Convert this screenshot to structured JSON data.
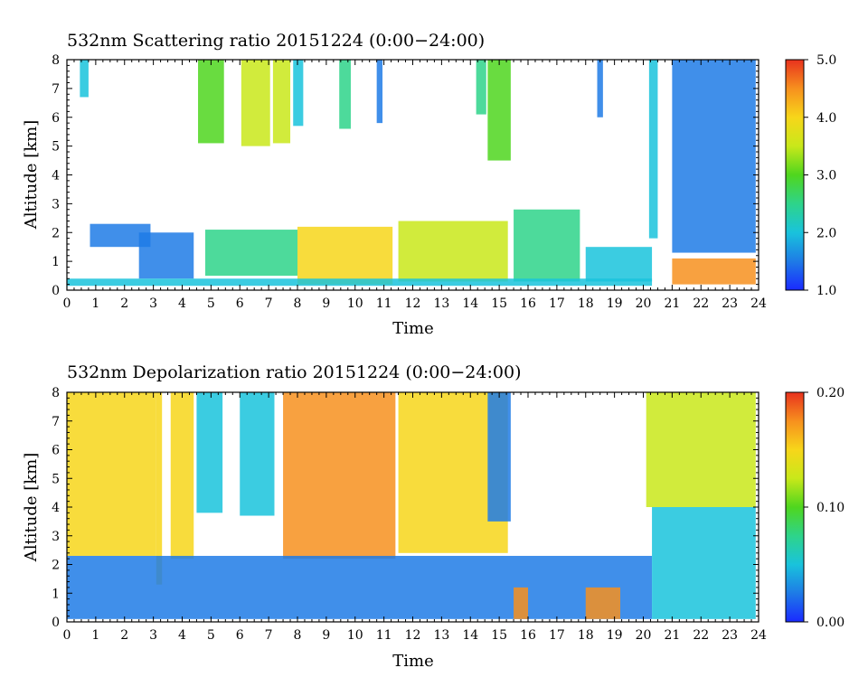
{
  "chart_data": [
    {
      "type": "heatmap",
      "title": "532nm Scattering ratio  20151224 (0:00−24:00)",
      "xlabel": "Time",
      "ylabel": "Altitude [km]",
      "xlim": [
        0,
        24
      ],
      "ylim": [
        0,
        8
      ],
      "x_ticks": [
        "0",
        "1",
        "2",
        "3",
        "4",
        "5",
        "6",
        "7",
        "8",
        "9",
        "10",
        "11",
        "12",
        "13",
        "14",
        "15",
        "16",
        "17",
        "18",
        "19",
        "20",
        "21",
        "22",
        "23",
        "24"
      ],
      "y_ticks": [
        "0",
        "1",
        "2",
        "3",
        "4",
        "5",
        "6",
        "7",
        "8"
      ],
      "colorbar": {
        "range": [
          1.0,
          5.0
        ],
        "ticks": [
          "1.0",
          "2.0",
          "3.0",
          "4.0",
          "5.0"
        ]
      },
      "features": [
        {
          "t0": 0.45,
          "t1": 0.75,
          "z0": 6.7,
          "z1": 8.0,
          "v": 2.0
        },
        {
          "t0": 4.55,
          "t1": 5.45,
          "z0": 5.1,
          "z1": 8.0,
          "v": 3.2
        },
        {
          "t0": 6.05,
          "t1": 7.05,
          "z0": 5.0,
          "z1": 8.0,
          "v": 3.3
        },
        {
          "t0": 7.15,
          "t1": 7.75,
          "z0": 5.1,
          "z1": 8.0,
          "v": 3.3
        },
        {
          "t0": 7.85,
          "t1": 8.2,
          "z0": 5.7,
          "z1": 8.0,
          "v": 2.2
        },
        {
          "t0": 9.45,
          "t1": 9.85,
          "z0": 5.6,
          "z1": 8.0,
          "v": 2.5
        },
        {
          "t0": 10.75,
          "t1": 10.95,
          "z0": 5.8,
          "z1": 8.0,
          "v": 1.7
        },
        {
          "t0": 14.2,
          "t1": 14.55,
          "z0": 6.1,
          "z1": 8.0,
          "v": 2.3
        },
        {
          "t0": 14.6,
          "t1": 15.4,
          "z0": 4.5,
          "z1": 8.0,
          "v": 2.8
        },
        {
          "t0": 18.4,
          "t1": 18.6,
          "z0": 6.0,
          "z1": 8.0,
          "v": 1.7
        },
        {
          "t0": 20.2,
          "t1": 20.5,
          "z0": 1.8,
          "z1": 8.0,
          "v": 1.8
        },
        {
          "t0": 21.0,
          "t1": 23.9,
          "z0": 1.3,
          "z1": 8.0,
          "v": 1.7
        },
        {
          "t0": 0.8,
          "t1": 2.9,
          "z0": 1.5,
          "z1": 2.3,
          "v": 1.5
        },
        {
          "t0": 2.5,
          "t1": 4.4,
          "z0": 0.4,
          "z1": 2.0,
          "v": 1.6
        },
        {
          "t0": 4.8,
          "t1": 8.0,
          "z0": 0.5,
          "z1": 2.1,
          "v": 2.4
        },
        {
          "t0": 8.0,
          "t1": 11.3,
          "z0": 0.2,
          "z1": 2.2,
          "v": 3.8
        },
        {
          "t0": 11.5,
          "t1": 15.3,
          "z0": 0.3,
          "z1": 2.4,
          "v": 3.3
        },
        {
          "t0": 15.5,
          "t1": 17.8,
          "z0": 0.3,
          "z1": 2.8,
          "v": 2.3
        },
        {
          "t0": 18.0,
          "t1": 20.3,
          "z0": 0.3,
          "z1": 1.5,
          "v": 1.8
        },
        {
          "t0": 0.0,
          "t1": 20.3,
          "z0": 0.15,
          "z1": 0.4,
          "v": 1.9
        },
        {
          "t0": 21.0,
          "t1": 23.9,
          "z0": 0.2,
          "z1": 1.1,
          "v": 4.6
        }
      ]
    },
    {
      "type": "heatmap",
      "title": "532nm Depolarization ratio  20151224 (0:00−24:00)",
      "xlabel": "Time",
      "ylabel": "Altitude [km]",
      "xlim": [
        0,
        24
      ],
      "ylim": [
        0,
        8
      ],
      "x_ticks": [
        "0",
        "1",
        "2",
        "3",
        "4",
        "5",
        "6",
        "7",
        "8",
        "9",
        "10",
        "11",
        "12",
        "13",
        "14",
        "15",
        "16",
        "17",
        "18",
        "19",
        "20",
        "21",
        "22",
        "23",
        "24"
      ],
      "y_ticks": [
        "0",
        "1",
        "2",
        "3",
        "4",
        "5",
        "6",
        "7",
        "8"
      ],
      "colorbar": {
        "range": [
          0.0,
          0.2
        ],
        "ticks": [
          "0.00",
          "0.10",
          "0.20"
        ]
      },
      "features": [
        {
          "t0": 0.0,
          "t1": 3.1,
          "z0": 2.3,
          "z1": 8.0,
          "v": 0.15
        },
        {
          "t0": 3.1,
          "t1": 3.3,
          "z0": 1.3,
          "z1": 8.0,
          "v": 0.16
        },
        {
          "t0": 3.6,
          "t1": 4.4,
          "z0": 2.2,
          "z1": 8.0,
          "v": 0.15
        },
        {
          "t0": 4.5,
          "t1": 5.4,
          "z0": 3.8,
          "z1": 8.0,
          "v": 0.04
        },
        {
          "t0": 6.0,
          "t1": 7.2,
          "z0": 3.7,
          "z1": 8.0,
          "v": 0.05
        },
        {
          "t0": 7.5,
          "t1": 11.4,
          "z0": 2.2,
          "z1": 8.0,
          "v": 0.17
        },
        {
          "t0": 11.5,
          "t1": 15.3,
          "z0": 2.4,
          "z1": 8.0,
          "v": 0.16
        },
        {
          "t0": 14.6,
          "t1": 15.4,
          "z0": 3.5,
          "z1": 8.0,
          "v": 0.03
        },
        {
          "t0": 20.1,
          "t1": 23.9,
          "z0": 4.0,
          "z1": 8.0,
          "v": 0.13
        },
        {
          "t0": 0.0,
          "t1": 20.3,
          "z0": 0.1,
          "z1": 2.3,
          "v": 0.03
        },
        {
          "t0": 20.3,
          "t1": 23.9,
          "z0": 0.1,
          "z1": 4.0,
          "v": 0.04
        },
        {
          "t0": 15.5,
          "t1": 16.0,
          "z0": 0.1,
          "z1": 1.2,
          "v": 0.17
        },
        {
          "t0": 18.0,
          "t1": 19.2,
          "z0": 0.1,
          "z1": 1.2,
          "v": 0.17
        }
      ]
    }
  ],
  "colors": {
    "colormap": [
      "#1a2aff",
      "#1e7be6",
      "#19c3dc",
      "#2ed48a",
      "#4fd61e",
      "#c9e81a",
      "#f7d61a",
      "#f7901e",
      "#e8321e"
    ],
    "axis": "#000000",
    "background": "#ffffff"
  }
}
